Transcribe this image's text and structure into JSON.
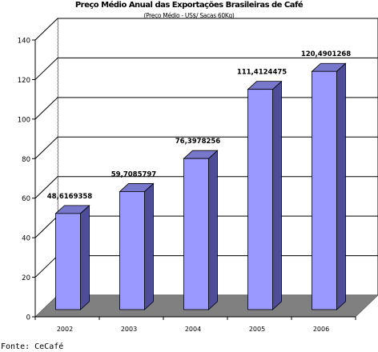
{
  "chart_data": {
    "type": "bar",
    "title": "Preço Médio Anual das Exportações Brasileiras de Café",
    "subtitle": "(Preço Médio - US$/ Sacas 60Kg)",
    "categories": [
      "2002",
      "2003",
      "2004",
      "2005",
      "2006"
    ],
    "values": [
      48.6169358,
      59.7085797,
      76.3978256,
      111.4124475,
      120.4901268
    ],
    "data_labels": [
      "48,6169358",
      "59,7085797",
      "76,3978256",
      "111,4124475",
      "120,4901268"
    ],
    "ylim": [
      0,
      140
    ],
    "yticks": [
      0,
      20,
      40,
      60,
      80,
      100,
      120,
      140
    ],
    "grid": true,
    "legend": "none",
    "colors": {
      "bar_front": "#9999ff",
      "bar_side": "#4d4d99",
      "bar_top": "#7777cc",
      "floor": "#808080",
      "grid": "#000000"
    }
  },
  "source": "Fonte: CeCafé"
}
